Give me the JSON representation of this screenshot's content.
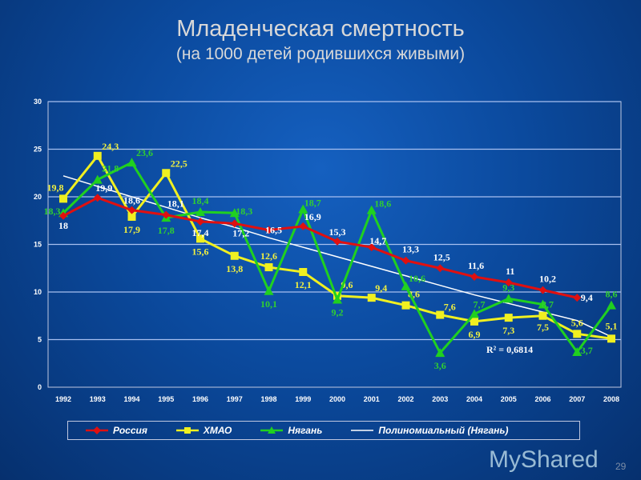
{
  "title": "Младенческая смертность",
  "subtitle": "(на 1000 детей родившихся живыми)",
  "chart_data": {
    "type": "line",
    "title": "Младенческая смертность",
    "subtitle": "(на 1000 детей родившихся живыми)",
    "x": [
      "1992",
      "1993",
      "1994",
      "1995",
      "1996",
      "1997",
      "1998",
      "1999",
      "2000",
      "2001",
      "2002",
      "2003",
      "2004",
      "2005",
      "2006",
      "2007",
      "2008"
    ],
    "yticks": [
      "0",
      "5",
      "10",
      "15",
      "20",
      "25",
      "30"
    ],
    "ylim": [
      0,
      30
    ],
    "grid": true,
    "legend_position": "bottom",
    "series": [
      {
        "name": "Россия",
        "color": "#e01010",
        "marker": "diamond",
        "values": [
          18,
          19.9,
          18.6,
          18.1,
          17.4,
          17.2,
          16.5,
          16.9,
          15.3,
          14.7,
          13.3,
          12.5,
          11.6,
          11,
          10.2,
          9.4,
          null
        ],
        "labels": [
          "18",
          "19,9",
          "18,6",
          "18,1",
          "17,4",
          "17,2",
          "16,5",
          "16,9",
          "15,3",
          "14,7",
          "13,3",
          "12,5",
          "11,6",
          "11",
          "10,2",
          "9,4",
          ""
        ],
        "label_color": "#ffffff"
      },
      {
        "name": "ХМАО",
        "color": "#f0f020",
        "marker": "square",
        "values": [
          19.8,
          24.3,
          17.9,
          22.5,
          15.6,
          13.8,
          12.6,
          12.1,
          9.6,
          9.4,
          8.6,
          7.6,
          6.9,
          7.3,
          7.5,
          5.6,
          5.1
        ],
        "labels": [
          "19,8",
          "24,3",
          "17,9",
          "22,5",
          "15,6",
          "13,8",
          "12,6",
          "12,1",
          "9,6",
          "9,4",
          "8,6",
          "7,6",
          "6,9",
          "7,3",
          "7,5",
          "5,6",
          "5,1"
        ],
        "label_color": "#f0f040"
      },
      {
        "name": "Нягань",
        "color": "#20d020",
        "marker": "triangle",
        "values": [
          18.3,
          21.8,
          23.6,
          17.8,
          18.4,
          18.3,
          10.1,
          18.7,
          9.2,
          18.6,
          10.6,
          3.6,
          7.7,
          9.3,
          8.7,
          3.7,
          8.6
        ],
        "labels": [
          "18,3",
          "21,8",
          "23,6",
          "17,8",
          "18,4",
          "18,3",
          "10,1",
          "18,7",
          "9,2",
          "18,6",
          "10,6",
          "3,6",
          "7,7",
          "9,3",
          "8,7",
          "3,7",
          "8,6"
        ],
        "label_color": "#30d030"
      },
      {
        "name": "Полиномиальный (Нягань)",
        "color": "#ffffff",
        "marker": "none",
        "values": [
          22.2,
          21.1,
          20.0,
          18.9,
          17.8,
          16.8,
          15.7,
          14.7,
          13.7,
          12.7,
          11.7,
          10.7,
          9.7,
          8.8,
          7.9,
          7.0,
          5.3
        ]
      }
    ],
    "annotation": "R² = 0,6814"
  },
  "watermark": "MyShared",
  "page_number": "29"
}
